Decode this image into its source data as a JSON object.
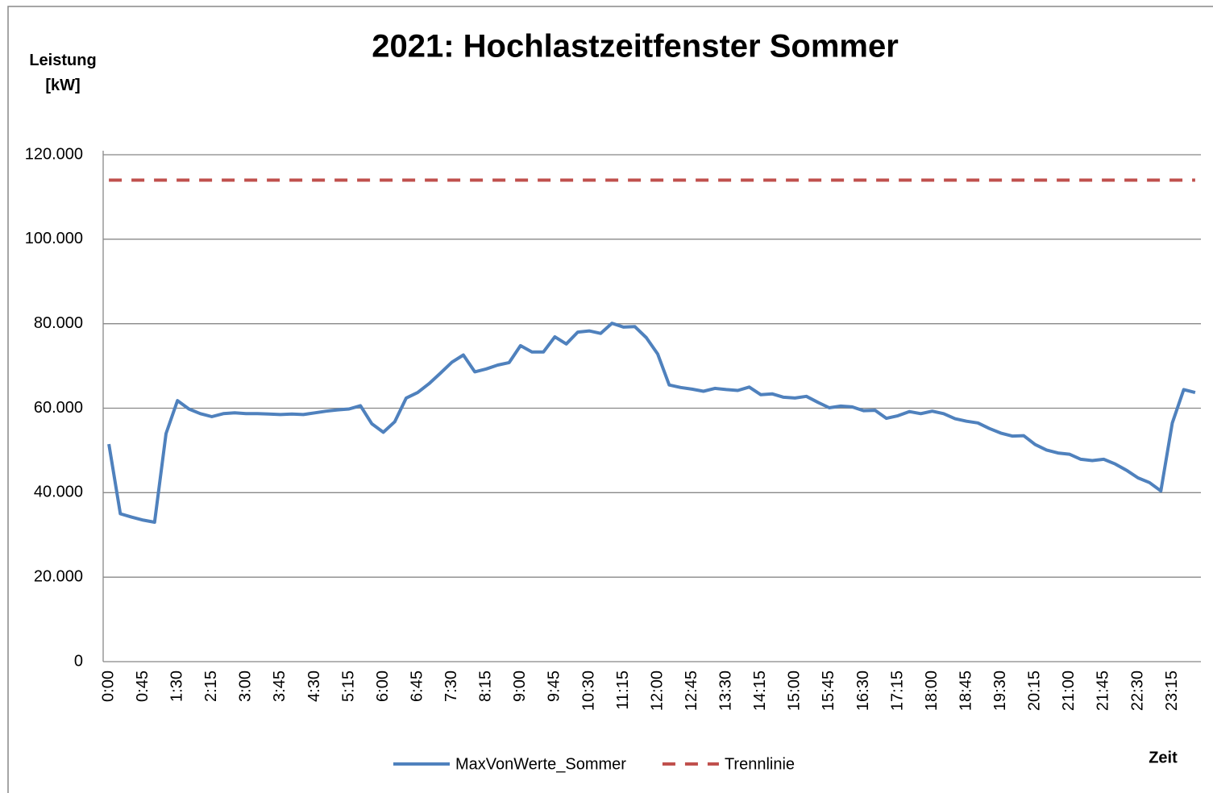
{
  "chart_data": {
    "type": "line",
    "title": "2021: Hochlastzeitfenster Sommer",
    "y_label": "Leistung [kW]",
    "x_label": "Zeit",
    "categories": [
      "0:00",
      null,
      null,
      "0:45",
      null,
      null,
      "1:30",
      null,
      null,
      "2:15",
      null,
      null,
      "3:00",
      null,
      null,
      "3:45",
      null,
      null,
      "4:30",
      null,
      null,
      "5:15",
      null,
      null,
      "6:00",
      null,
      null,
      "6:45",
      null,
      null,
      "7:30",
      null,
      null,
      "8:15",
      null,
      null,
      "9:00",
      null,
      null,
      "9:45",
      null,
      null,
      "10:30",
      null,
      null,
      "11:15",
      null,
      null,
      "12:00",
      null,
      null,
      "12:45",
      null,
      null,
      "13:30",
      null,
      null,
      "14:15",
      null,
      null,
      "15:00",
      null,
      null,
      "15:45",
      null,
      null,
      "16:30",
      null,
      null,
      "17:15",
      null,
      null,
      "18:00",
      null,
      null,
      "18:45",
      null,
      null,
      "19:30",
      null,
      null,
      "20:15",
      null,
      null,
      "21:00",
      null,
      null,
      "21:45",
      null,
      null,
      "22:30",
      null,
      null,
      "23:15",
      null,
      null
    ],
    "series": [
      {
        "name": "MaxVonWerte_Sommer",
        "color": "#4f81bd",
        "dash": false,
        "values": [
          51500,
          35000,
          34200,
          33500,
          33000,
          54000,
          61800,
          59800,
          58700,
          58000,
          58700,
          58900,
          58700,
          58700,
          58600,
          58500,
          58600,
          58500,
          58900,
          59300,
          59600,
          59800,
          60600,
          56300,
          54300,
          56800,
          62400,
          63700,
          65800,
          68300,
          70900,
          72600,
          68600,
          69300,
          70200,
          70800,
          74800,
          73300,
          73300,
          76900,
          75200,
          78000,
          78300,
          77700,
          80100,
          79200,
          79300,
          76700,
          72800,
          65500,
          64900,
          64500,
          64000,
          64700,
          64400,
          64200,
          65000,
          63200,
          63400,
          62600,
          62400,
          62800,
          61400,
          60100,
          60500,
          60300,
          59400,
          59500,
          57600,
          58200,
          59200,
          58700,
          59300,
          58700,
          57500,
          56900,
          56500,
          55200,
          54100,
          53400,
          53500,
          51400,
          50100,
          49400,
          49100,
          47900,
          47600,
          47900,
          46800,
          45300,
          43500,
          42400,
          40400,
          56500,
          64400,
          63700
        ]
      },
      {
        "name": "Trennlinie",
        "color": "#c0504d",
        "dash": true,
        "values": [
          114000,
          114000,
          114000,
          114000,
          114000,
          114000,
          114000,
          114000,
          114000,
          114000,
          114000,
          114000,
          114000,
          114000,
          114000,
          114000,
          114000,
          114000,
          114000,
          114000,
          114000,
          114000,
          114000,
          114000,
          114000,
          114000,
          114000,
          114000,
          114000,
          114000,
          114000,
          114000,
          114000,
          114000,
          114000,
          114000,
          114000,
          114000,
          114000,
          114000,
          114000,
          114000,
          114000,
          114000,
          114000,
          114000,
          114000,
          114000,
          114000,
          114000,
          114000,
          114000,
          114000,
          114000,
          114000,
          114000,
          114000,
          114000,
          114000,
          114000,
          114000,
          114000,
          114000,
          114000,
          114000,
          114000,
          114000,
          114000,
          114000,
          114000,
          114000,
          114000,
          114000,
          114000,
          114000,
          114000,
          114000,
          114000,
          114000,
          114000,
          114000,
          114000,
          114000,
          114000,
          114000,
          114000,
          114000,
          114000,
          114000,
          114000,
          114000,
          114000,
          114000,
          114000,
          114000,
          114000
        ]
      }
    ],
    "ylim": [
      0,
      120000
    ],
    "yticks": [
      0,
      {
        "value": 20000,
        "label": "20.000"
      },
      {
        "value": 40000,
        "label": "40.000"
      },
      {
        "value": 60000,
        "label": "60.000"
      },
      {
        "value": 80000,
        "label": "80.000"
      },
      {
        "value": 100000,
        "label": "100.000"
      },
      {
        "value": 120000,
        "label": "120.000"
      }
    ],
    "grid": true,
    "legend": "bottom"
  }
}
